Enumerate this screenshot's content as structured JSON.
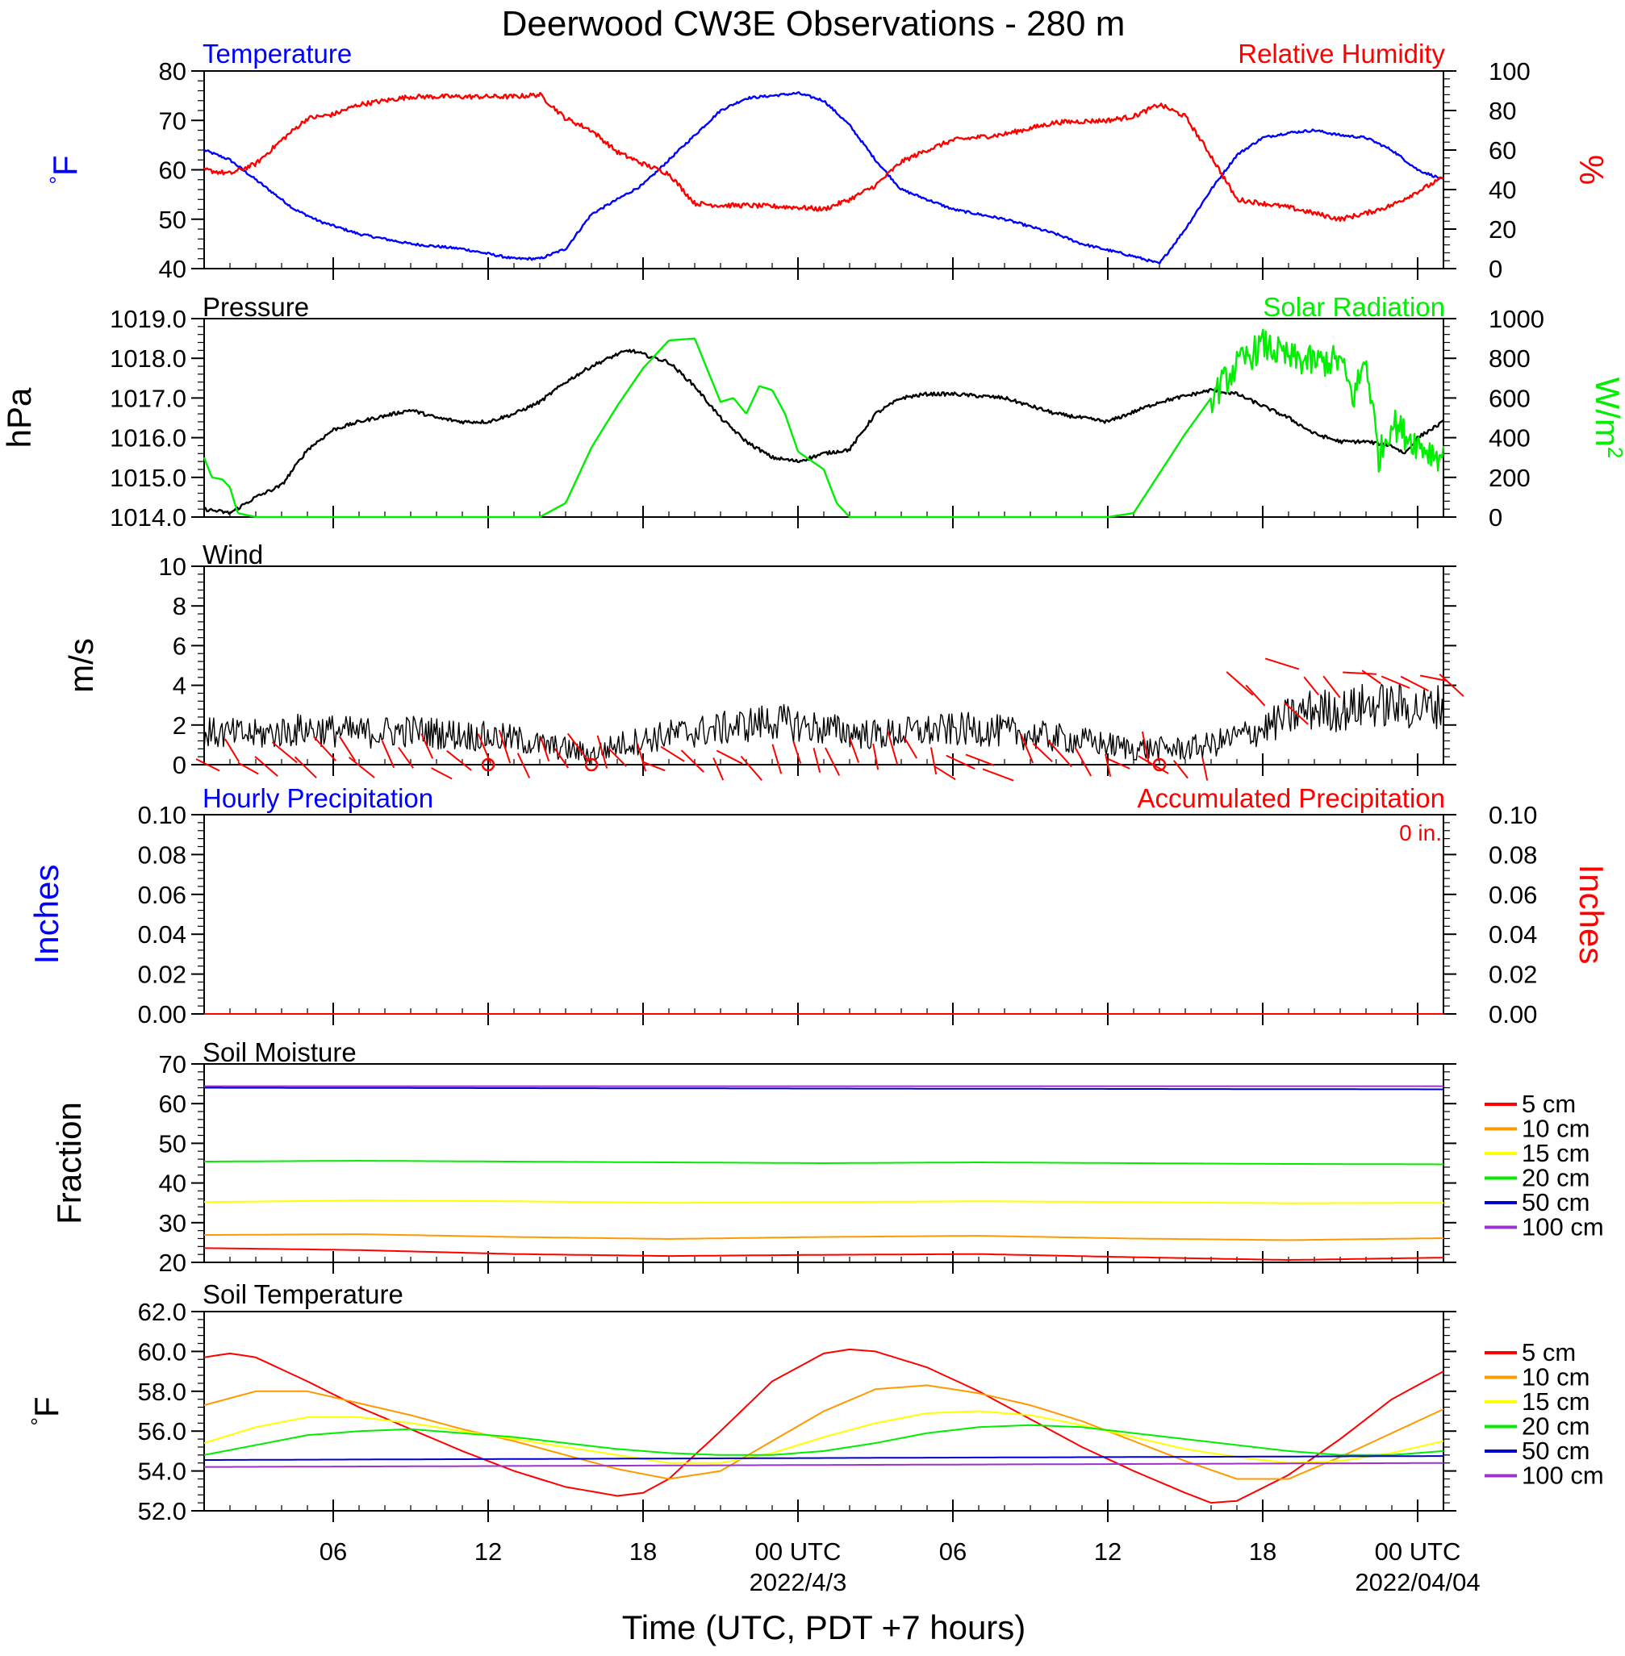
{
  "title": "Deerwood CW3E Observations - 280 m",
  "x_axis": {
    "label": "Time (UTC, PDT +7 hours)",
    "tick_hours": [
      6,
      12,
      18,
      24,
      30,
      36,
      42,
      48
    ],
    "tick_labels": [
      "06",
      "12",
      "18",
      "00 UTC",
      "06",
      "12",
      "18",
      "00 UTC"
    ],
    "date_labels": [
      {
        "hour": 24,
        "text": "2022/4/3"
      },
      {
        "hour": 48,
        "text": "2022/04/04"
      }
    ],
    "range_hours": [
      1,
      49
    ]
  },
  "colors": {
    "temperature": "#0000ff",
    "humidity": "#ff0000",
    "pressure": "#000000",
    "solar": "#00ee00",
    "wind": "#000000",
    "barb": "#ff0000",
    "hourly_precip": "#0000ff",
    "accum_precip": "#ff0000"
  },
  "layer_colors": {
    "5 cm": "#ff0000",
    "10 cm": "#ff9900",
    "15 cm": "#ffff00",
    "20 cm": "#00ee00",
    "50 cm": "#0000cc",
    "100 cm": "#9933cc"
  },
  "chart_data": [
    {
      "type": "line",
      "left_title": "Temperature",
      "right_title": "Relative Humidity",
      "ylabel_left": "°F",
      "ylabel_right": "%",
      "ylim_left": [
        40,
        80
      ],
      "ylim_right": [
        0,
        100
      ],
      "yticks_left": [
        "40",
        "50",
        "60",
        "70",
        "80"
      ],
      "yticks_right": [
        "0",
        "20",
        "40",
        "60",
        "80",
        "100"
      ],
      "series": [
        {
          "name": "Temperature",
          "axis": "left",
          "x": [
            1,
            2,
            3,
            4.5,
            5.5,
            7,
            9,
            11,
            13,
            14,
            15,
            16,
            18,
            20,
            21,
            22,
            24,
            25,
            26,
            27,
            28,
            30,
            32,
            34,
            35,
            37,
            38,
            39,
            40,
            41,
            42,
            43,
            44,
            45,
            46,
            47,
            48,
            49
          ],
          "y": [
            64,
            62,
            58,
            52,
            49.5,
            47,
            45,
            44,
            42,
            42,
            44,
            51,
            57,
            67,
            72,
            74.5,
            75.5,
            74,
            69,
            62,
            56,
            52,
            50,
            47,
            45,
            42.5,
            41,
            48,
            56,
            63,
            66.5,
            67.5,
            68,
            67,
            66.5,
            64,
            60,
            58
          ]
        },
        {
          "name": "Relative Humidity",
          "axis": "right",
          "x": [
            1,
            2,
            3,
            4,
            5,
            6,
            7,
            9,
            11,
            13,
            14,
            15,
            16,
            17,
            18,
            19,
            20,
            21,
            22,
            24,
            25,
            26,
            27,
            28,
            29,
            30,
            32,
            34,
            36,
            37,
            38,
            39,
            40,
            41,
            42,
            43,
            44,
            45,
            46,
            47,
            48,
            49
          ],
          "y": [
            50,
            48,
            53,
            65,
            76,
            78,
            83,
            87,
            87,
            87,
            88,
            76,
            70,
            59,
            53,
            48,
            33,
            32,
            32,
            31,
            30,
            35,
            42,
            54,
            60,
            65,
            68,
            74,
            75,
            77,
            83,
            77,
            57,
            35,
            33,
            31,
            28,
            25,
            28,
            32,
            39,
            46
          ]
        }
      ]
    },
    {
      "type": "line",
      "left_title": "Pressure",
      "right_title": "Solar Radiation",
      "ylabel_left": "hPa",
      "ylabel_right": "W/m2",
      "ylim_left": [
        1014,
        1019
      ],
      "ylim_right": [
        0,
        1000
      ],
      "yticks_left": [
        "1014.0",
        "1015.0",
        "1016.0",
        "1017.0",
        "1018.0",
        "1019.0"
      ],
      "yticks_right": [
        "0",
        "200",
        "400",
        "600",
        "800",
        "1000"
      ],
      "series": [
        {
          "name": "Pressure",
          "axis": "left",
          "x": [
            1,
            2,
            3,
            4,
            5,
            6,
            7,
            9,
            10,
            11,
            12,
            13,
            14,
            15,
            16,
            17,
            17.5,
            18,
            19,
            20,
            21,
            22,
            23,
            24,
            25,
            26,
            27,
            28,
            29,
            30,
            32,
            34,
            35,
            36,
            38,
            40,
            41,
            42,
            43,
            44,
            45,
            46,
            47,
            47.5,
            48,
            49
          ],
          "y": [
            1014.2,
            1014.1,
            1014.5,
            1014.8,
            1015.7,
            1016.2,
            1016.4,
            1016.7,
            1016.5,
            1016.4,
            1016.4,
            1016.6,
            1016.9,
            1017.4,
            1017.8,
            1018.1,
            1018.2,
            1018.1,
            1017.9,
            1017.3,
            1016.5,
            1015.9,
            1015.5,
            1015.4,
            1015.6,
            1015.7,
            1016.6,
            1017.0,
            1017.1,
            1017.1,
            1017.0,
            1016.6,
            1016.5,
            1016.4,
            1016.9,
            1017.2,
            1017.1,
            1016.8,
            1016.5,
            1016.1,
            1015.9,
            1015.9,
            1015.8,
            1015.6,
            1016.0,
            1016.4
          ]
        },
        {
          "name": "Solar Radiation",
          "axis": "right",
          "x": [
            1,
            1.3,
            1.7,
            2,
            2.3,
            3,
            13,
            14,
            15,
            16,
            17,
            18,
            19,
            20,
            21,
            21.5,
            22,
            22.5,
            23,
            23.5,
            24,
            25,
            25.5,
            26,
            36,
            37,
            38,
            39,
            40,
            41,
            42,
            43,
            44,
            45,
            45.5,
            46,
            46.5,
            47,
            47.5,
            48,
            48.5,
            49
          ],
          "y": [
            300,
            200,
            190,
            150,
            20,
            0,
            0,
            0,
            70,
            350,
            560,
            750,
            890,
            900,
            580,
            600,
            520,
            660,
            640,
            520,
            330,
            240,
            70,
            0,
            0,
            20,
            220,
            420,
            600,
            760,
            870,
            800,
            780,
            790,
            600,
            800,
            300,
            480,
            420,
            370,
            330,
            300
          ]
        }
      ]
    },
    {
      "type": "line",
      "left_title": "Wind",
      "ylabel_left": "m/s",
      "ylim_left": [
        0,
        10
      ],
      "yticks_left": [
        "0",
        "2",
        "4",
        "6",
        "8",
        "10"
      ],
      "series": [
        {
          "name": "Wind",
          "axis": "left",
          "x": [
            1,
            3,
            5,
            7,
            9,
            11,
            13,
            14,
            15,
            16,
            17,
            19,
            21,
            23,
            25,
            27,
            29,
            31,
            33,
            35,
            37,
            38,
            39,
            40,
            41,
            42,
            43,
            44,
            45,
            46,
            47,
            48,
            49
          ],
          "y": [
            1.6,
            1.5,
            1.8,
            1.6,
            1.7,
            1.5,
            1.3,
            1.0,
            0.8,
            0.5,
            1.0,
            1.5,
            1.8,
            2.2,
            1.8,
            1.5,
            1.7,
            1.8,
            1.5,
            1.2,
            0.8,
            0.8,
            0.8,
            1.0,
            1.4,
            1.8,
            2.4,
            2.8,
            2.7,
            3.0,
            3.0,
            2.8,
            3.0
          ]
        }
      ],
      "calm_markers_hours": [
        12,
        16,
        38
      ]
    },
    {
      "type": "line",
      "left_title": "Hourly Precipitation",
      "right_title": "Accumulated Precipitation",
      "annotation": "0 in.",
      "ylabel_left": "Inches",
      "ylabel_right": "Inches",
      "ylim_left": [
        0,
        0.1
      ],
      "ylim_right": [
        0,
        0.1
      ],
      "yticks_left": [
        "0.00",
        "0.02",
        "0.04",
        "0.06",
        "0.08",
        "0.10"
      ],
      "yticks_right": [
        "0.00",
        "0.02",
        "0.04",
        "0.06",
        "0.08",
        "0.10"
      ],
      "series": [
        {
          "name": "Accumulated Precipitation",
          "axis": "left",
          "x": [
            1,
            49
          ],
          "y": [
            0,
            0
          ]
        }
      ]
    },
    {
      "type": "line",
      "left_title": "Soil Moisture",
      "ylabel_left": "Fraction",
      "ylim_left": [
        20,
        70
      ],
      "yticks_left": [
        "20",
        "30",
        "40",
        "50",
        "60",
        "70"
      ],
      "legend": [
        "5 cm",
        "10 cm",
        "15 cm",
        "20 cm",
        "50 cm",
        "100 cm"
      ],
      "series": [
        {
          "name": "100 cm",
          "x": [
            1,
            49
          ],
          "y": [
            64.4,
            64.4
          ]
        },
        {
          "name": "50 cm",
          "x": [
            1,
            49
          ],
          "y": [
            64.0,
            63.6
          ]
        },
        {
          "name": "20 cm",
          "x": [
            1,
            7,
            13,
            19,
            25,
            31,
            37,
            43,
            49
          ],
          "y": [
            45.4,
            45.6,
            45.4,
            45.2,
            45.0,
            45.2,
            45.0,
            44.8,
            44.7
          ]
        },
        {
          "name": "15 cm",
          "x": [
            1,
            7,
            13,
            19,
            25,
            31,
            37,
            43,
            49
          ],
          "y": [
            35.2,
            35.6,
            35.4,
            35.0,
            35.2,
            35.4,
            35.2,
            34.9,
            35.0
          ]
        },
        {
          "name": "10 cm",
          "x": [
            1,
            7,
            13,
            19,
            25,
            31,
            37,
            43,
            49
          ],
          "y": [
            26.9,
            27.1,
            26.4,
            25.9,
            26.4,
            26.7,
            26.0,
            25.6,
            26.1
          ]
        },
        {
          "name": "5 cm",
          "x": [
            1,
            7,
            13,
            19,
            25,
            31,
            37,
            43,
            49
          ],
          "y": [
            23.6,
            23.1,
            22.1,
            21.6,
            21.9,
            22.1,
            21.3,
            20.6,
            21.2
          ]
        }
      ]
    },
    {
      "type": "line",
      "left_title": "Soil Temperature",
      "ylabel_left": "°F",
      "ylim_left": [
        52,
        62
      ],
      "yticks_left": [
        "52.0",
        "54.0",
        "56.0",
        "58.0",
        "60.0",
        "62.0"
      ],
      "legend": [
        "5 cm",
        "10 cm",
        "15 cm",
        "20 cm",
        "50 cm",
        "100 cm"
      ],
      "series": [
        {
          "name": "5 cm",
          "x": [
            1,
            2,
            3,
            5,
            7,
            9,
            11,
            13,
            15,
            17,
            18,
            19,
            21,
            23,
            25,
            26,
            27,
            29,
            31,
            33,
            35,
            37,
            39,
            40,
            41,
            43,
            45,
            47,
            49
          ],
          "y": [
            59.7,
            59.9,
            59.7,
            58.5,
            57.2,
            56.1,
            55.0,
            54.0,
            53.2,
            52.75,
            52.9,
            53.6,
            56.0,
            58.5,
            59.9,
            60.1,
            60.0,
            59.2,
            58.0,
            56.6,
            55.2,
            54.0,
            52.9,
            52.4,
            52.5,
            53.8,
            55.6,
            57.6,
            59.0
          ]
        },
        {
          "name": "10 cm",
          "x": [
            1,
            3,
            5,
            7,
            9,
            11,
            13,
            15,
            17,
            19,
            21,
            23,
            25,
            27,
            29,
            31,
            33,
            35,
            37,
            39,
            41,
            43,
            45,
            47,
            49
          ],
          "y": [
            57.3,
            58.0,
            58.0,
            57.4,
            56.8,
            56.1,
            55.5,
            54.8,
            54.1,
            53.6,
            54.0,
            55.5,
            57.0,
            58.1,
            58.3,
            57.9,
            57.3,
            56.5,
            55.5,
            54.5,
            53.6,
            53.6,
            54.7,
            55.9,
            57.1
          ]
        },
        {
          "name": "15 cm",
          "x": [
            1,
            3,
            5,
            7,
            9,
            11,
            13,
            15,
            17,
            19,
            21,
            23,
            25,
            27,
            29,
            31,
            33,
            35,
            37,
            39,
            41,
            43,
            45,
            47,
            49
          ],
          "y": [
            55.4,
            56.2,
            56.7,
            56.7,
            56.4,
            56.0,
            55.6,
            55.2,
            54.8,
            54.4,
            54.4,
            54.9,
            55.7,
            56.4,
            56.9,
            57.0,
            56.8,
            56.3,
            55.7,
            55.1,
            54.7,
            54.4,
            54.5,
            54.9,
            55.5
          ]
        },
        {
          "name": "20 cm",
          "x": [
            1,
            3,
            5,
            7,
            9,
            11,
            13,
            15,
            17,
            19,
            21,
            23,
            25,
            27,
            29,
            31,
            33,
            35,
            37,
            39,
            41,
            43,
            45,
            47,
            49
          ],
          "y": [
            54.8,
            55.3,
            55.8,
            56.0,
            56.1,
            55.9,
            55.7,
            55.4,
            55.1,
            54.9,
            54.8,
            54.8,
            55.0,
            55.4,
            55.9,
            56.2,
            56.3,
            56.2,
            55.9,
            55.6,
            55.3,
            55.0,
            54.8,
            54.8,
            55.0
          ]
        },
        {
          "name": "50 cm",
          "x": [
            1,
            49
          ],
          "y": [
            54.55,
            54.75
          ]
        },
        {
          "name": "100 cm",
          "x": [
            1,
            49
          ],
          "y": [
            54.2,
            54.4
          ]
        }
      ]
    }
  ]
}
